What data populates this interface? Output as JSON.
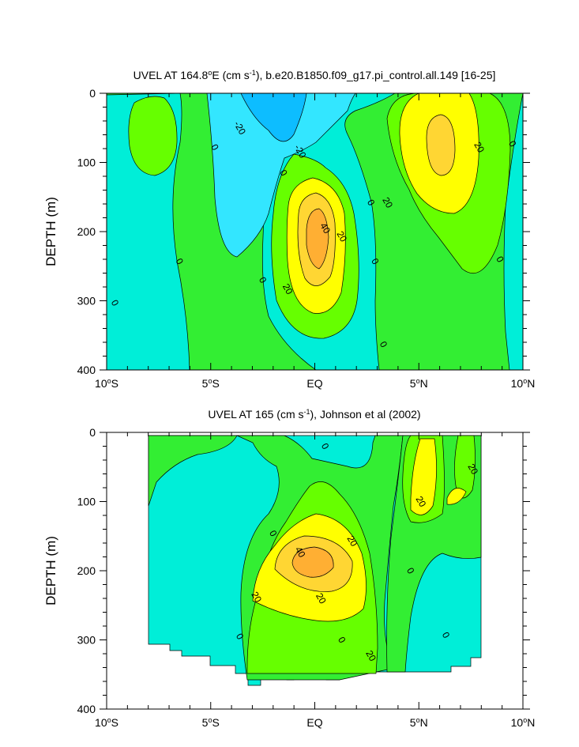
{
  "chart_data": [
    {
      "type": "contour",
      "title": "UVEL AT 164.8°E (cm s⁻¹), b.e20.B1850.f09_g17.pi_control.all.149 [16-25]",
      "title_parts": {
        "pre": "UVEL AT 164.8",
        "deg": "o",
        "mid": "E (cm s",
        "exp": "-1",
        "post": "), b.e20.B1850.f09_g17.pi_control.all.149 [16-25]"
      },
      "ylabel": "DEPTH (m)",
      "xlim": [
        -10,
        10
      ],
      "ylim": [
        0,
        400
      ],
      "y_reversed": true,
      "x_ticks": [
        {
          "value": -10,
          "num": "10",
          "deg": "o",
          "suf": "S"
        },
        {
          "value": -5,
          "num": "5",
          "deg": "o",
          "suf": "S"
        },
        {
          "value": 0,
          "num": "EQ",
          "deg": "",
          "suf": ""
        },
        {
          "value": 5,
          "num": "5",
          "deg": "o",
          "suf": "N"
        },
        {
          "value": 10,
          "num": "10",
          "deg": "o",
          "suf": "N"
        }
      ],
      "y_ticks": [
        "0",
        "100",
        "200",
        "300",
        "400"
      ],
      "contour_interval": 10,
      "colors": {
        "lt_-20": "#0dbdff",
        "-20_-10": "#33e6ff",
        "-10_0": "#00eed8",
        "0_10": "#33ee33",
        "10_20": "#66ff00",
        "20_30": "#ffff00",
        "30_40": "#ffd633",
        "40_50": "#ffaf33"
      },
      "contour_labels": [
        {
          "lon": -4.8,
          "depth": 78,
          "text": "0"
        },
        {
          "lon": -9.6,
          "depth": 303,
          "text": "0"
        },
        {
          "lon": -6.5,
          "depth": 243,
          "text": "0"
        },
        {
          "lon": -2.5,
          "depth": 270,
          "text": "0"
        },
        {
          "lon": -1.5,
          "depth": 115,
          "text": "0"
        },
        {
          "lon": 2.7,
          "depth": 158,
          "text": "0"
        },
        {
          "lon": 2.9,
          "depth": 243,
          "text": "0"
        },
        {
          "lon": 3.3,
          "depth": 363,
          "text": "0"
        },
        {
          "lon": 8.9,
          "depth": 240,
          "text": "0"
        },
        {
          "lon": 9.5,
          "depth": 73,
          "text": "0"
        },
        {
          "lon": -3.6,
          "depth": 50,
          "text": "-20"
        },
        {
          "lon": -0.7,
          "depth": 84,
          "text": "-20"
        },
        {
          "lon": 1.3,
          "depth": 207,
          "text": "20"
        },
        {
          "lon": -1.3,
          "depth": 283,
          "text": "20"
        },
        {
          "lon": 3.5,
          "depth": 158,
          "text": "20"
        },
        {
          "lon": 7.9,
          "depth": 78,
          "text": "20"
        },
        {
          "lon": 0.5,
          "depth": 195,
          "text": "40"
        }
      ]
    },
    {
      "type": "contour",
      "title": "UVEL AT 165 (cm s⁻¹), Johnson et al (2002)",
      "title_parts": {
        "pre": "UVEL AT 165",
        "deg": "",
        "mid": " (cm s",
        "exp": "-1",
        "post": "), Johnson et al (2002)"
      },
      "ylabel": "DEPTH (m)",
      "xlim": [
        -10,
        10
      ],
      "ylim": [
        0,
        400
      ],
      "y_reversed": true,
      "x_ticks": [
        {
          "value": -10,
          "num": "10",
          "deg": "o",
          "suf": "S"
        },
        {
          "value": -5,
          "num": "5",
          "deg": "o",
          "suf": "S"
        },
        {
          "value": 0,
          "num": "EQ",
          "deg": "",
          "suf": ""
        },
        {
          "value": 5,
          "num": "5",
          "deg": "o",
          "suf": "N"
        },
        {
          "value": 10,
          "num": "10",
          "deg": "o",
          "suf": "N"
        }
      ],
      "y_ticks": [
        "0",
        "100",
        "200",
        "300",
        "400"
      ],
      "data_lon_range": [
        -8,
        8
      ],
      "contour_interval": 10,
      "contour_labels": [
        {
          "lon": 0.5,
          "depth": 20,
          "text": "0"
        },
        {
          "lon": -2.0,
          "depth": 146,
          "text": "0"
        },
        {
          "lon": 4.6,
          "depth": 200,
          "text": "0"
        },
        {
          "lon": -3.6,
          "depth": 295,
          "text": "0"
        },
        {
          "lon": 1.3,
          "depth": 300,
          "text": "0"
        },
        {
          "lon": 6.3,
          "depth": 293,
          "text": "0"
        },
        {
          "lon": -0.7,
          "depth": 173,
          "text": "40"
        },
        {
          "lon": 1.8,
          "depth": 157,
          "text": "20"
        },
        {
          "lon": -2.8,
          "depth": 238,
          "text": "20"
        },
        {
          "lon": 0.3,
          "depth": 240,
          "text": "20"
        },
        {
          "lon": 2.7,
          "depth": 323,
          "text": "20"
        },
        {
          "lon": 5.1,
          "depth": 100,
          "text": "20"
        },
        {
          "lon": 7.6,
          "depth": 53,
          "text": "20"
        }
      ]
    }
  ]
}
